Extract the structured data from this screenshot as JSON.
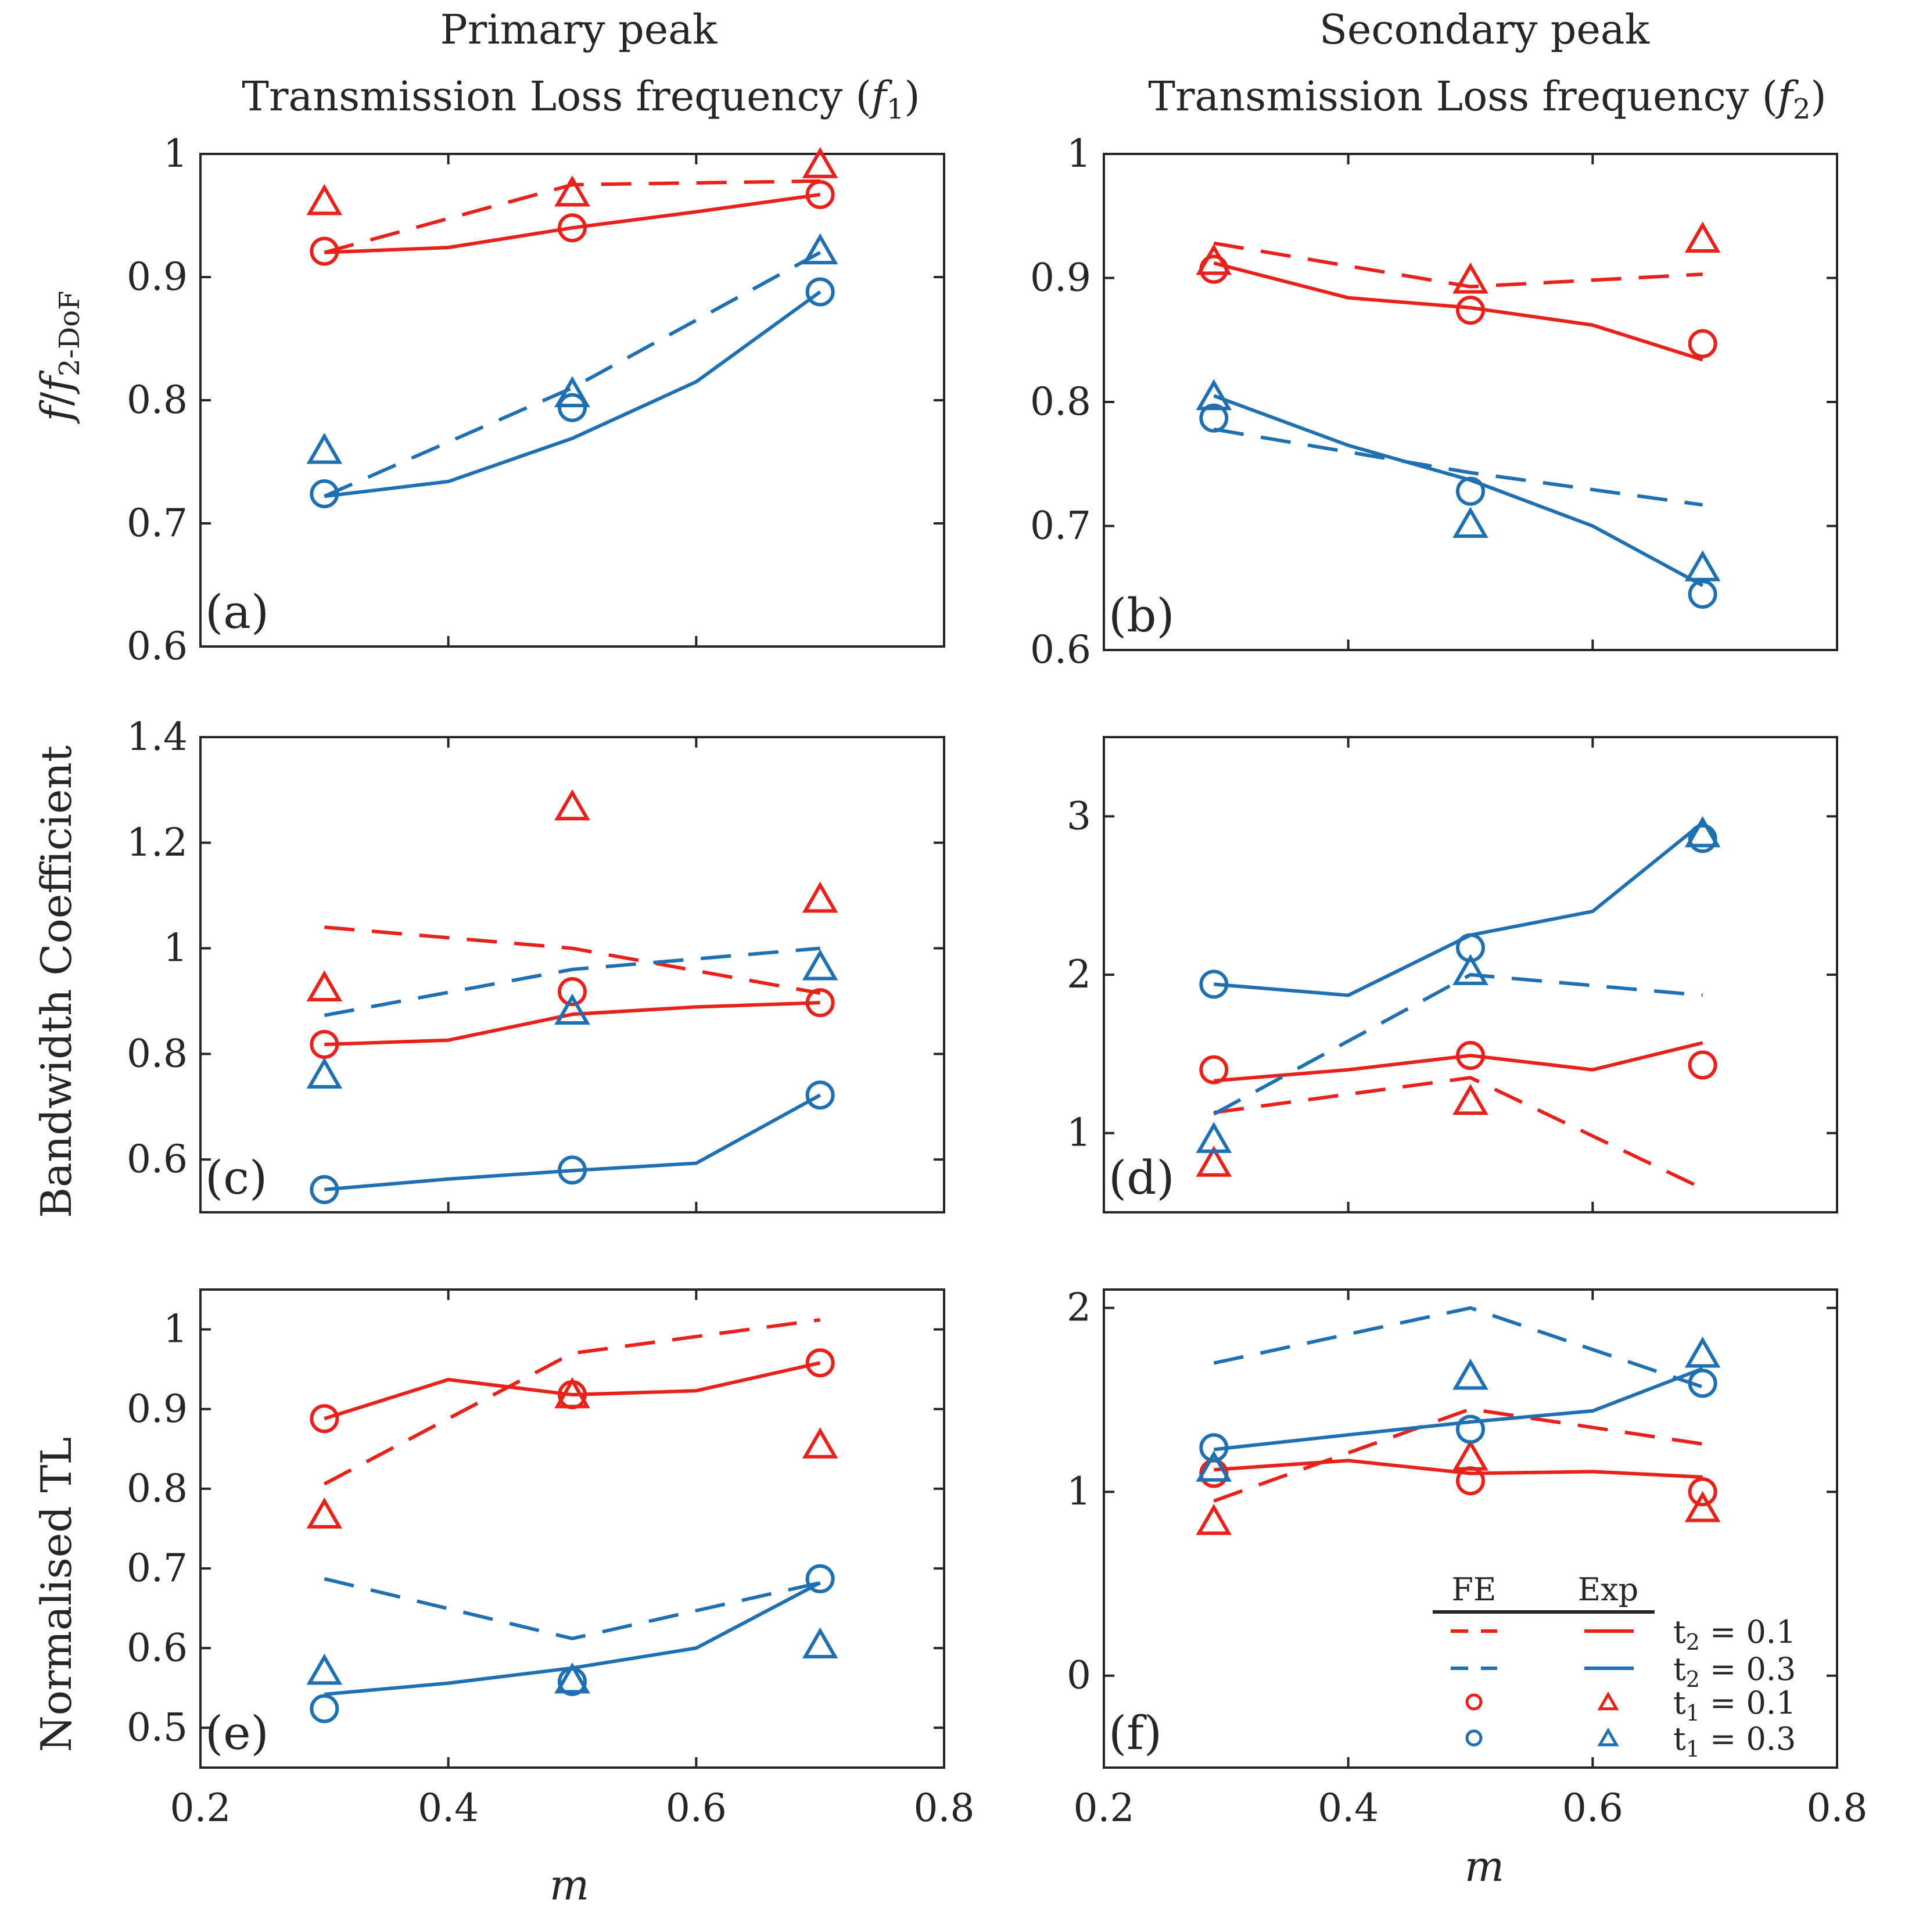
{
  "figure": {
    "col_titles": [
      [
        "Primary peak",
        "Transmission Loss frequency (f1)"
      ],
      [
        "Secondary peak",
        "Transmission Loss frequency (f2)"
      ]
    ],
    "row_ylabels": [
      "f/f2-DoF",
      "Bandwidth Coefficient",
      "Normalised TL"
    ],
    "xlabel": "m"
  },
  "legend": {
    "header_fe": "FE",
    "header_exp": "Exp",
    "entries": [
      {
        "label": "t2 = 0.1",
        "fe": "dashed",
        "exp": "solid",
        "color": "#e8211a"
      },
      {
        "label": "t2 = 0.3",
        "fe": "dashed",
        "exp": "solid",
        "color": "#1f6fb3"
      },
      {
        "label": "t1 = 0.1",
        "fe": "circle",
        "exp": "triangle",
        "color": "#e8211a"
      },
      {
        "label": "t1 = 0.3",
        "fe": "circle",
        "exp": "triangle",
        "color": "#1f6fb3"
      }
    ]
  },
  "colors": {
    "red": "#e8211a",
    "blue": "#1f6fb3",
    "axis": "#262626"
  },
  "chart_data": [
    {
      "panel": "(a)",
      "type": "line",
      "xlim": [
        0.2,
        0.8
      ],
      "ylim": [
        0.6,
        1.0
      ],
      "xticks": [
        "0.2",
        "0.4",
        "0.6",
        "0.8"
      ],
      "yticks": [
        "0.6",
        "0.7",
        "0.8",
        "0.9",
        "1"
      ],
      "show_xtick_labels": false,
      "series": [
        {
          "name": "FE t2=0.1",
          "color": "red",
          "style": "dashed",
          "x": [
            0.3,
            0.5,
            0.7
          ],
          "y": [
            0.92,
            0.975,
            0.978
          ]
        },
        {
          "name": "Exp t2=0.1",
          "color": "red",
          "style": "solid",
          "x": [
            0.3,
            0.4,
            0.5,
            0.6,
            0.7
          ],
          "y": [
            0.92,
            0.924,
            0.94,
            0.953,
            0.967
          ]
        },
        {
          "name": "FE t2=0.3",
          "color": "blue",
          "style": "dashed",
          "x": [
            0.3,
            0.5,
            0.7
          ],
          "y": [
            0.722,
            0.81,
            0.92
          ]
        },
        {
          "name": "Exp t2=0.3",
          "color": "blue",
          "style": "solid",
          "x": [
            0.3,
            0.4,
            0.5,
            0.6,
            0.7
          ],
          "y": [
            0.722,
            0.734,
            0.769,
            0.815,
            0.888
          ]
        },
        {
          "name": "FE t1=0.1",
          "color": "red",
          "marker": "circle",
          "x": [
            0.3,
            0.5,
            0.7
          ],
          "y": [
            0.921,
            0.94,
            0.967
          ]
        },
        {
          "name": "Exp t1=0.1",
          "color": "red",
          "marker": "triangle",
          "x": [
            0.3,
            0.5,
            0.7
          ],
          "y": [
            0.96,
            0.967,
            0.99
          ]
        },
        {
          "name": "FE t1=0.3",
          "color": "blue",
          "marker": "circle",
          "x": [
            0.3,
            0.5,
            0.7
          ],
          "y": [
            0.724,
            0.794,
            0.888
          ]
        },
        {
          "name": "Exp t1=0.3",
          "color": "blue",
          "marker": "triangle",
          "x": [
            0.3,
            0.5,
            0.7
          ],
          "y": [
            0.758,
            0.804,
            0.92
          ]
        }
      ]
    },
    {
      "panel": "(b)",
      "type": "line",
      "xlim": [
        0.2,
        0.8
      ],
      "ylim": [
        0.6,
        1.0
      ],
      "xticks": [
        "0.2",
        "0.4",
        "0.6",
        "0.8"
      ],
      "yticks": [
        "0.6",
        "0.7",
        "0.8",
        "0.9",
        "1"
      ],
      "show_xtick_labels": false,
      "series": [
        {
          "name": "FE t2=0.1",
          "color": "red",
          "style": "dashed",
          "x": [
            0.29,
            0.5,
            0.69
          ],
          "y": [
            0.928,
            0.893,
            0.903
          ]
        },
        {
          "name": "Exp t2=0.1",
          "color": "red",
          "style": "solid",
          "x": [
            0.29,
            0.4,
            0.5,
            0.6,
            0.69
          ],
          "y": [
            0.912,
            0.884,
            0.876,
            0.862,
            0.834
          ]
        },
        {
          "name": "FE t2=0.3",
          "color": "blue",
          "style": "dashed",
          "x": [
            0.29,
            0.5,
            0.69
          ],
          "y": [
            0.778,
            0.743,
            0.717
          ]
        },
        {
          "name": "Exp t2=0.3",
          "color": "blue",
          "style": "solid",
          "x": [
            0.29,
            0.4,
            0.5,
            0.6,
            0.69
          ],
          "y": [
            0.805,
            0.765,
            0.737,
            0.7,
            0.652
          ]
        },
        {
          "name": "FE t1=0.1",
          "color": "red",
          "marker": "circle",
          "x": [
            0.29,
            0.5,
            0.69
          ],
          "y": [
            0.907,
            0.874,
            0.847
          ]
        },
        {
          "name": "Exp t1=0.1",
          "color": "red",
          "marker": "triangle",
          "x": [
            0.29,
            0.5,
            0.69
          ],
          "y": [
            0.912,
            0.897,
            0.93
          ]
        },
        {
          "name": "FE t1=0.3",
          "color": "blue",
          "marker": "circle",
          "x": [
            0.29,
            0.5,
            0.69
          ],
          "y": [
            0.787,
            0.728,
            0.645
          ]
        },
        {
          "name": "Exp t1=0.3",
          "color": "blue",
          "marker": "triangle",
          "x": [
            0.29,
            0.5,
            0.69
          ],
          "y": [
            0.803,
            0.7,
            0.665
          ]
        }
      ]
    },
    {
      "panel": "(c)",
      "type": "line",
      "xlim": [
        0.2,
        0.8
      ],
      "ylim": [
        0.5,
        1.4
      ],
      "xticks": [
        "0.2",
        "0.4",
        "0.6",
        "0.8"
      ],
      "yticks": [
        "0.6",
        "0.8",
        "1",
        "1.2",
        "1.4"
      ],
      "show_xtick_labels": false,
      "series": [
        {
          "name": "FE t2=0.1",
          "color": "red",
          "style": "dashed",
          "x": [
            0.3,
            0.5,
            0.7
          ],
          "y": [
            1.04,
            1.0,
            0.915
          ]
        },
        {
          "name": "Exp t2=0.1",
          "color": "red",
          "style": "solid",
          "x": [
            0.3,
            0.4,
            0.5,
            0.6,
            0.7
          ],
          "y": [
            0.818,
            0.826,
            0.875,
            0.889,
            0.897
          ]
        },
        {
          "name": "FE t2=0.3",
          "color": "blue",
          "style": "dashed",
          "x": [
            0.3,
            0.5,
            0.7
          ],
          "y": [
            0.873,
            0.96,
            1.0
          ]
        },
        {
          "name": "Exp t2=0.3",
          "color": "blue",
          "style": "solid",
          "x": [
            0.3,
            0.4,
            0.5,
            0.6,
            0.7
          ],
          "y": [
            0.543,
            0.563,
            0.579,
            0.593,
            0.722
          ]
        },
        {
          "name": "FE t1=0.1",
          "color": "red",
          "marker": "circle",
          "x": [
            0.3,
            0.5,
            0.7
          ],
          "y": [
            0.818,
            0.918,
            0.897
          ]
        },
        {
          "name": "Exp t1=0.1",
          "color": "red",
          "marker": "triangle",
          "x": [
            0.3,
            0.5,
            0.7
          ],
          "y": [
            0.922,
            1.265,
            1.09
          ]
        },
        {
          "name": "FE t1=0.3",
          "color": "blue",
          "marker": "circle",
          "x": [
            0.3,
            0.5,
            0.7
          ],
          "y": [
            0.543,
            0.58,
            0.722
          ]
        },
        {
          "name": "Exp t1=0.3",
          "color": "blue",
          "marker": "triangle",
          "x": [
            0.3,
            0.5,
            0.7
          ],
          "y": [
            0.757,
            0.878,
            0.962
          ]
        }
      ]
    },
    {
      "panel": "(d)",
      "type": "line",
      "xlim": [
        0.2,
        0.8
      ],
      "ylim": [
        0.5,
        3.5
      ],
      "xticks": [
        "0.2",
        "0.4",
        "0.6",
        "0.8"
      ],
      "yticks": [
        "1",
        "2",
        "3"
      ],
      "show_xtick_labels": false,
      "series": [
        {
          "name": "FE t2=0.1",
          "color": "red",
          "style": "dashed",
          "x": [
            0.29,
            0.5,
            0.69
          ],
          "y": [
            1.13,
            1.35,
            0.65
          ]
        },
        {
          "name": "Exp t2=0.1",
          "color": "red",
          "style": "solid",
          "x": [
            0.29,
            0.4,
            0.5,
            0.6,
            0.69
          ],
          "y": [
            1.33,
            1.4,
            1.49,
            1.4,
            1.57
          ]
        },
        {
          "name": "FE t2=0.3",
          "color": "blue",
          "style": "dashed",
          "x": [
            0.29,
            0.5,
            0.69
          ],
          "y": [
            1.12,
            2.0,
            1.87
          ]
        },
        {
          "name": "Exp t2=0.3",
          "color": "blue",
          "style": "solid",
          "x": [
            0.29,
            0.4,
            0.5,
            0.6,
            0.69
          ],
          "y": [
            1.94,
            1.87,
            2.25,
            2.4,
            2.96
          ]
        },
        {
          "name": "FE t1=0.1",
          "color": "red",
          "marker": "circle",
          "x": [
            0.29,
            0.5,
            0.69
          ],
          "y": [
            1.4,
            1.49,
            1.43
          ]
        },
        {
          "name": "Exp t1=0.1",
          "color": "red",
          "marker": "triangle",
          "x": [
            0.29,
            0.5,
            0.69
          ],
          "y": [
            0.8,
            1.19,
            null
          ]
        },
        {
          "name": "FE t1=0.3",
          "color": "blue",
          "marker": "circle",
          "x": [
            0.29,
            0.5,
            0.69
          ],
          "y": [
            1.94,
            2.17,
            2.86
          ]
        },
        {
          "name": "Exp t1=0.3",
          "color": "blue",
          "marker": "triangle",
          "x": [
            0.29,
            0.5,
            0.69
          ],
          "y": [
            0.95,
            2.01,
            2.88
          ]
        }
      ]
    },
    {
      "panel": "(e)",
      "type": "line",
      "xlim": [
        0.2,
        0.8
      ],
      "ylim": [
        0.45,
        1.05
      ],
      "xticks": [
        "0.2",
        "0.4",
        "0.6",
        "0.8"
      ],
      "yticks": [
        "0.5",
        "0.6",
        "0.7",
        "0.8",
        "0.9",
        "1"
      ],
      "show_xtick_labels": true,
      "series": [
        {
          "name": "FE t2=0.1",
          "color": "red",
          "style": "dashed",
          "x": [
            0.3,
            0.5,
            0.7
          ],
          "y": [
            0.806,
            0.97,
            1.012
          ]
        },
        {
          "name": "Exp t2=0.1",
          "color": "red",
          "style": "solid",
          "x": [
            0.3,
            0.4,
            0.5,
            0.6,
            0.7
          ],
          "y": [
            0.888,
            0.937,
            0.918,
            0.923,
            0.958
          ]
        },
        {
          "name": "FE t2=0.3",
          "color": "blue",
          "style": "dashed",
          "x": [
            0.3,
            0.5,
            0.7
          ],
          "y": [
            0.687,
            0.612,
            0.682
          ]
        },
        {
          "name": "Exp t2=0.3",
          "color": "blue",
          "style": "solid",
          "x": [
            0.3,
            0.4,
            0.5,
            0.6,
            0.7
          ],
          "y": [
            0.542,
            0.556,
            0.575,
            0.6,
            0.682
          ]
        },
        {
          "name": "FE t1=0.1",
          "color": "red",
          "marker": "circle",
          "x": [
            0.3,
            0.5,
            0.7
          ],
          "y": [
            0.888,
            0.918,
            0.958
          ]
        },
        {
          "name": "Exp t1=0.1",
          "color": "red",
          "marker": "triangle",
          "x": [
            0.3,
            0.5,
            0.7
          ],
          "y": [
            0.765,
            0.916,
            0.853
          ]
        },
        {
          "name": "FE t1=0.3",
          "color": "blue",
          "marker": "circle",
          "x": [
            0.3,
            0.5,
            0.7
          ],
          "y": [
            0.524,
            0.558,
            0.687
          ]
        },
        {
          "name": "Exp t1=0.3",
          "color": "blue",
          "marker": "triangle",
          "x": [
            0.3,
            0.5,
            0.7
          ],
          "y": [
            0.569,
            0.558,
            0.602
          ]
        }
      ]
    },
    {
      "panel": "(f)",
      "type": "line",
      "xlim": [
        0.2,
        0.8
      ],
      "ylim": [
        -0.5,
        2.1
      ],
      "xticks": [
        "0.2",
        "0.4",
        "0.6",
        "0.8"
      ],
      "yticks": [
        "0",
        "1",
        "2"
      ],
      "show_xtick_labels": true,
      "series": [
        {
          "name": "FE t2=0.1",
          "color": "red",
          "style": "dashed",
          "x": [
            0.29,
            0.5,
            0.69
          ],
          "y": [
            0.95,
            1.45,
            1.26
          ]
        },
        {
          "name": "Exp t2=0.1",
          "color": "red",
          "style": "solid",
          "x": [
            0.29,
            0.4,
            0.5,
            0.6,
            0.69
          ],
          "y": [
            1.12,
            1.17,
            1.1,
            1.11,
            1.08
          ]
        },
        {
          "name": "FE t2=0.3",
          "color": "blue",
          "style": "dashed",
          "x": [
            0.29,
            0.5,
            0.69
          ],
          "y": [
            1.7,
            2.0,
            1.57
          ]
        },
        {
          "name": "Exp t2=0.3",
          "color": "blue",
          "style": "solid",
          "x": [
            0.29,
            0.4,
            0.5,
            0.6,
            0.69
          ],
          "y": [
            1.23,
            1.31,
            1.38,
            1.44,
            1.67
          ]
        },
        {
          "name": "FE t1=0.1",
          "color": "red",
          "marker": "circle",
          "x": [
            0.29,
            0.5,
            0.69
          ],
          "y": [
            1.1,
            1.06,
            1.0
          ]
        },
        {
          "name": "Exp t1=0.1",
          "color": "red",
          "marker": "triangle",
          "x": [
            0.29,
            0.5,
            0.69
          ],
          "y": [
            0.83,
            1.18,
            0.9
          ]
        },
        {
          "name": "FE t1=0.3",
          "color": "blue",
          "marker": "circle",
          "x": [
            0.29,
            0.5,
            0.69
          ],
          "y": [
            1.24,
            1.34,
            1.59
          ]
        },
        {
          "name": "Exp t1=0.3",
          "color": "blue",
          "marker": "triangle",
          "x": [
            0.29,
            0.5,
            0.69
          ],
          "y": [
            1.12,
            1.62,
            1.74
          ]
        }
      ]
    }
  ]
}
